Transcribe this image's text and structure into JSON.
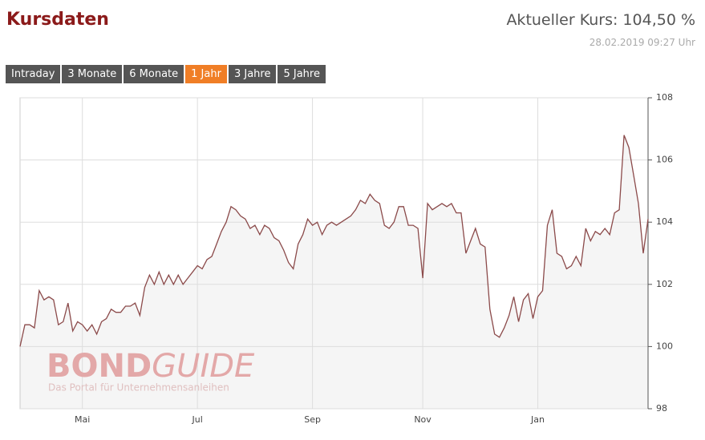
{
  "header": {
    "title": "Kursdaten",
    "price": "Aktueller Kurs: 104,50 %",
    "timestamp": "28.02.2019 09:27 Uhr"
  },
  "buttons": [
    "Intraday",
    "3 Monate",
    "6 Monate",
    "1 Jahr",
    "3 Jahre",
    "5 Jahre"
  ],
  "active_button": 3,
  "chart_data": {
    "type": "line",
    "watermark": "BOND",
    "watermark2": "GUIDE",
    "watermark_sub": "Das Portal für Unternehmensanleihen",
    "categories": [
      null,
      null,
      null,
      null,
      null,
      null,
      null,
      null,
      null,
      null,
      null,
      null,
      null,
      "Mai",
      null,
      null,
      null,
      null,
      null,
      null,
      null,
      null,
      null,
      null,
      null,
      null,
      null,
      null,
      null,
      null,
      null,
      null,
      null,
      null,
      null,
      null,
      null,
      "Jul",
      null,
      null,
      null,
      null,
      null,
      null,
      null,
      null,
      null,
      null,
      null,
      null,
      null,
      null,
      null,
      null,
      null,
      null,
      null,
      null,
      null,
      null,
      null,
      "Sep",
      null,
      null,
      null,
      null,
      null,
      null,
      null,
      null,
      null,
      null,
      null,
      null,
      null,
      null,
      null,
      null,
      null,
      null,
      null,
      null,
      null,
      null,
      "Nov",
      null,
      null,
      null,
      null,
      null,
      null,
      null,
      null,
      null,
      null,
      null,
      null,
      null,
      null,
      null,
      null,
      null,
      null,
      null,
      null,
      null,
      null,
      null,
      "Jan",
      null,
      null,
      null,
      null,
      null,
      null,
      null,
      null,
      null,
      null,
      null,
      null,
      null,
      null,
      null,
      null,
      null,
      null,
      null,
      null,
      null,
      null,
      null
    ],
    "series": [
      {
        "color": "#8b4a4a",
        "values": [
          100.0,
          100.7,
          100.7,
          100.6,
          101.8,
          101.5,
          101.6,
          101.5,
          100.7,
          100.8,
          101.4,
          100.5,
          100.8,
          100.7,
          100.5,
          100.7,
          100.4,
          100.8,
          100.9,
          101.2,
          101.1,
          101.1,
          101.3,
          101.3,
          101.4,
          101.0,
          101.9,
          102.3,
          102.0,
          102.4,
          102.0,
          102.3,
          102.0,
          102.3,
          102.0,
          102.2,
          102.4,
          102.6,
          102.5,
          102.8,
          102.9,
          103.3,
          103.7,
          104.0,
          104.5,
          104.4,
          104.2,
          104.1,
          103.8,
          103.9,
          103.6,
          103.9,
          103.8,
          103.5,
          103.4,
          103.1,
          102.7,
          102.5,
          103.3,
          103.6,
          104.1,
          103.9,
          104.0,
          103.6,
          103.9,
          104.0,
          103.9,
          104.0,
          104.1,
          104.2,
          104.4,
          104.7,
          104.6,
          104.9,
          104.7,
          104.6,
          103.9,
          103.8,
          104.0,
          104.5,
          104.5,
          103.9,
          103.9,
          103.8,
          102.2,
          104.6,
          104.4,
          104.5,
          104.6,
          104.5,
          104.6,
          104.3,
          104.3,
          103.0,
          103.4,
          103.8,
          103.3,
          103.2,
          101.2,
          100.4,
          100.3,
          100.6,
          101.0,
          101.6,
          100.8,
          101.5,
          101.7,
          100.9,
          101.6,
          101.8,
          103.9,
          104.4,
          103.0,
          102.9,
          102.5,
          102.6,
          102.9,
          102.6,
          103.8,
          103.4,
          103.7,
          103.6,
          103.8,
          103.6,
          104.3,
          104.4,
          106.8,
          106.4,
          105.5,
          104.6,
          103.0,
          104.1
        ]
      }
    ],
    "ylim": [
      98,
      108
    ],
    "yticks": [
      98,
      100,
      102,
      104,
      106,
      108
    ],
    "grid": true,
    "area_fill": "#f2f2f2"
  }
}
